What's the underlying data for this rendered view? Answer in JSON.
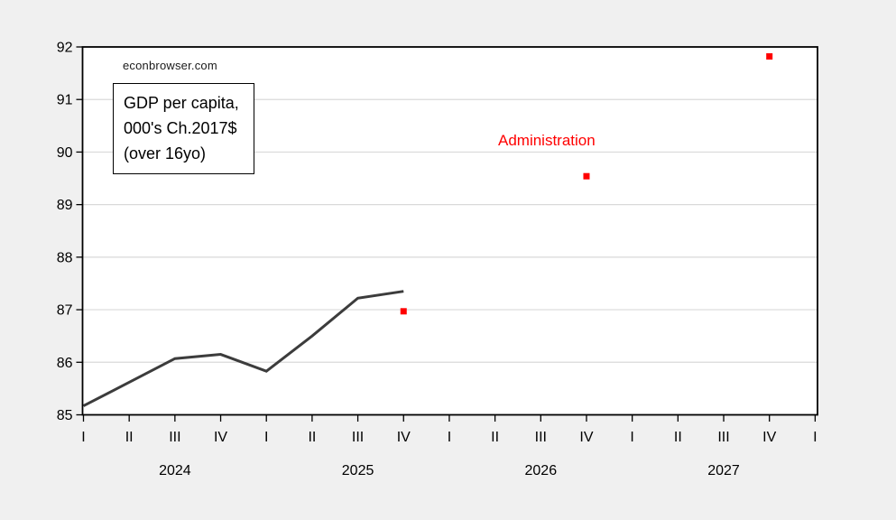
{
  "page": {
    "background_color": "#f0f0f0",
    "plot_background_color": "#ffffff",
    "gridline_color": "#d9d9d9",
    "frame_color": "#000000"
  },
  "chart_data": {
    "type": "line",
    "title": "",
    "watermark": "econbrowser.com",
    "note_box": {
      "lines": [
        "GDP per capita,",
        "000's Ch.2017$",
        "(over 16yo)"
      ]
    },
    "annotation": {
      "text": "Administration",
      "color": "#ff0000"
    },
    "grid": "horizontal-only",
    "legend": "none",
    "ylim": [
      85,
      92
    ],
    "y_ticks": [
      85,
      86,
      87,
      88,
      89,
      90,
      91,
      92
    ],
    "x_quarter_ticks": [
      "I",
      "II",
      "III",
      "IV",
      "I",
      "II",
      "III",
      "IV",
      "I",
      "II",
      "III",
      "IV",
      "I",
      "II",
      "III",
      "IV",
      "I"
    ],
    "x_years": [
      {
        "label": "2024",
        "center_q": 2
      },
      {
        "label": "2025",
        "center_q": 6
      },
      {
        "label": "2026",
        "center_q": 10
      },
      {
        "label": "2027",
        "center_q": 14
      }
    ],
    "series": [
      {
        "name": "GDP per capita, 000's Ch.2017$ (over 16yo)",
        "type": "line",
        "color": "#3c3c3c",
        "stroke_width": 3,
        "x_quarters": [
          "2024Q1",
          "2024Q2",
          "2024Q3",
          "2024Q4",
          "2025Q1",
          "2025Q2",
          "2025Q3",
          "2025Q4"
        ],
        "q_index": [
          0,
          1,
          2,
          3,
          4,
          5,
          6,
          7
        ],
        "values": [
          85.17,
          85.62,
          86.07,
          86.15,
          85.83,
          86.5,
          87.22,
          87.35
        ]
      },
      {
        "name": "Administration",
        "type": "scatter",
        "marker": "square",
        "marker_size": 7,
        "color": "#ff0000",
        "x_quarters": [
          "2025Q4",
          "2026Q4",
          "2027Q4"
        ],
        "q_index": [
          7,
          11,
          15
        ],
        "values": [
          86.97,
          89.54,
          91.82
        ]
      }
    ]
  }
}
